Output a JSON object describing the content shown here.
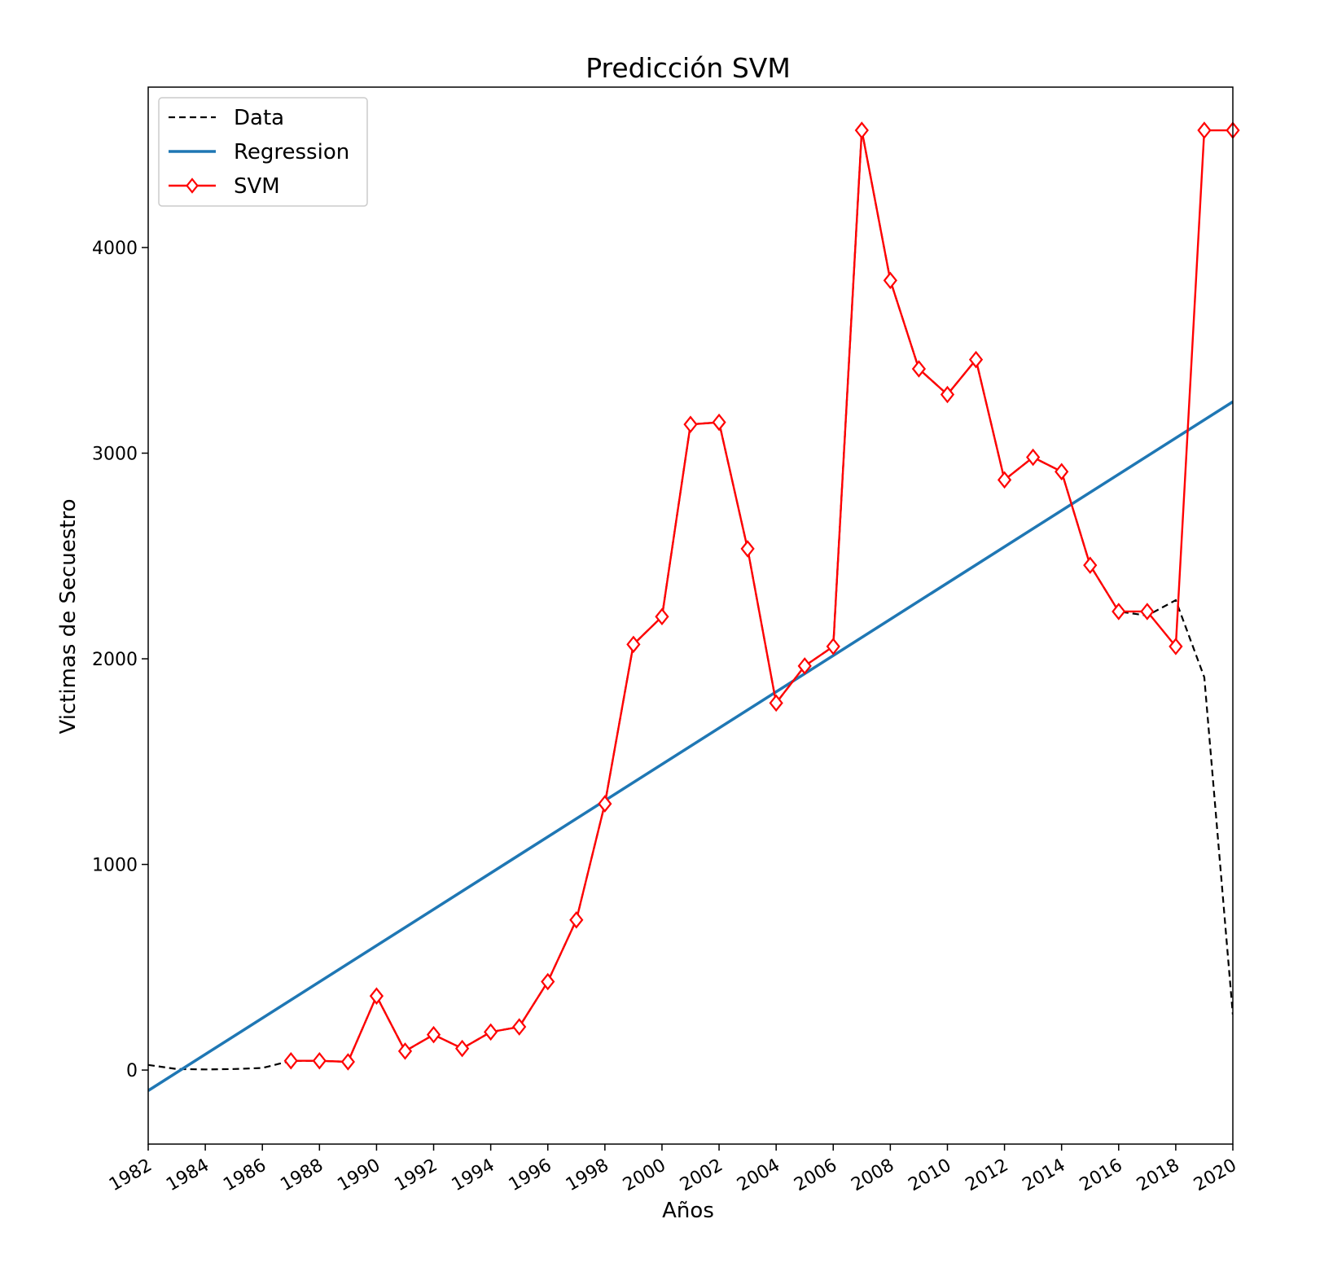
{
  "chart_data": {
    "type": "line",
    "title": "Predicción SVM",
    "xlabel": "Años",
    "ylabel": "Victimas de Secuestro",
    "xlim": [
      1982,
      2020
    ],
    "ylim": [
      -360,
      4780
    ],
    "xticks": [
      1982,
      1984,
      1986,
      1988,
      1990,
      1992,
      1994,
      1996,
      1998,
      2000,
      2002,
      2004,
      2006,
      2008,
      2010,
      2012,
      2014,
      2016,
      2018,
      2020
    ],
    "yticks": [
      0,
      1000,
      2000,
      3000,
      4000
    ],
    "grid": false,
    "legend": "top-left",
    "colors": {
      "data": "#000000",
      "regression": "#1f77b4",
      "svm": "#ff0000"
    },
    "series": [
      {
        "name": "Data",
        "style": "dashed",
        "x": [
          1982,
          1983,
          1984,
          1985,
          1986,
          1987,
          1988,
          1989,
          1990,
          1991,
          1992,
          1993,
          1994,
          1995,
          1996,
          1997,
          1998,
          1999,
          2000,
          2001,
          2002,
          2003,
          2004,
          2005,
          2006,
          2007,
          2008,
          2009,
          2010,
          2011,
          2012,
          2013,
          2014,
          2015,
          2016,
          2017,
          2018,
          2019,
          2020
        ],
        "y": [
          25,
          5,
          3,
          5,
          10,
          45,
          45,
          40,
          360,
          92,
          172,
          105,
          185,
          210,
          430,
          730,
          1295,
          2070,
          2205,
          3140,
          3150,
          2535,
          1785,
          1965,
          2060,
          4570,
          3840,
          3410,
          3285,
          3455,
          2870,
          2980,
          2910,
          2455,
          2230,
          2210,
          2285,
          1910,
          270
        ]
      },
      {
        "name": "Regression",
        "style": "solid",
        "x": [
          1982,
          2020
        ],
        "y": [
          -100,
          3250
        ]
      },
      {
        "name": "SVM",
        "style": "solid-diamond",
        "x": [
          1987,
          1988,
          1989,
          1990,
          1991,
          1992,
          1993,
          1994,
          1995,
          1996,
          1997,
          1998,
          1999,
          2000,
          2001,
          2002,
          2003,
          2004,
          2005,
          2006,
          2007,
          2008,
          2009,
          2010,
          2011,
          2012,
          2013,
          2014,
          2015,
          2016,
          2017,
          2018,
          2019,
          2020
        ],
        "y": [
          45,
          45,
          40,
          360,
          92,
          172,
          105,
          185,
          210,
          430,
          730,
          1295,
          2070,
          2205,
          3140,
          3150,
          2535,
          1785,
          1965,
          2060,
          4570,
          3840,
          3410,
          3285,
          3455,
          2870,
          2980,
          2910,
          2455,
          2230,
          2230,
          2060,
          4570,
          4570
        ]
      }
    ]
  }
}
